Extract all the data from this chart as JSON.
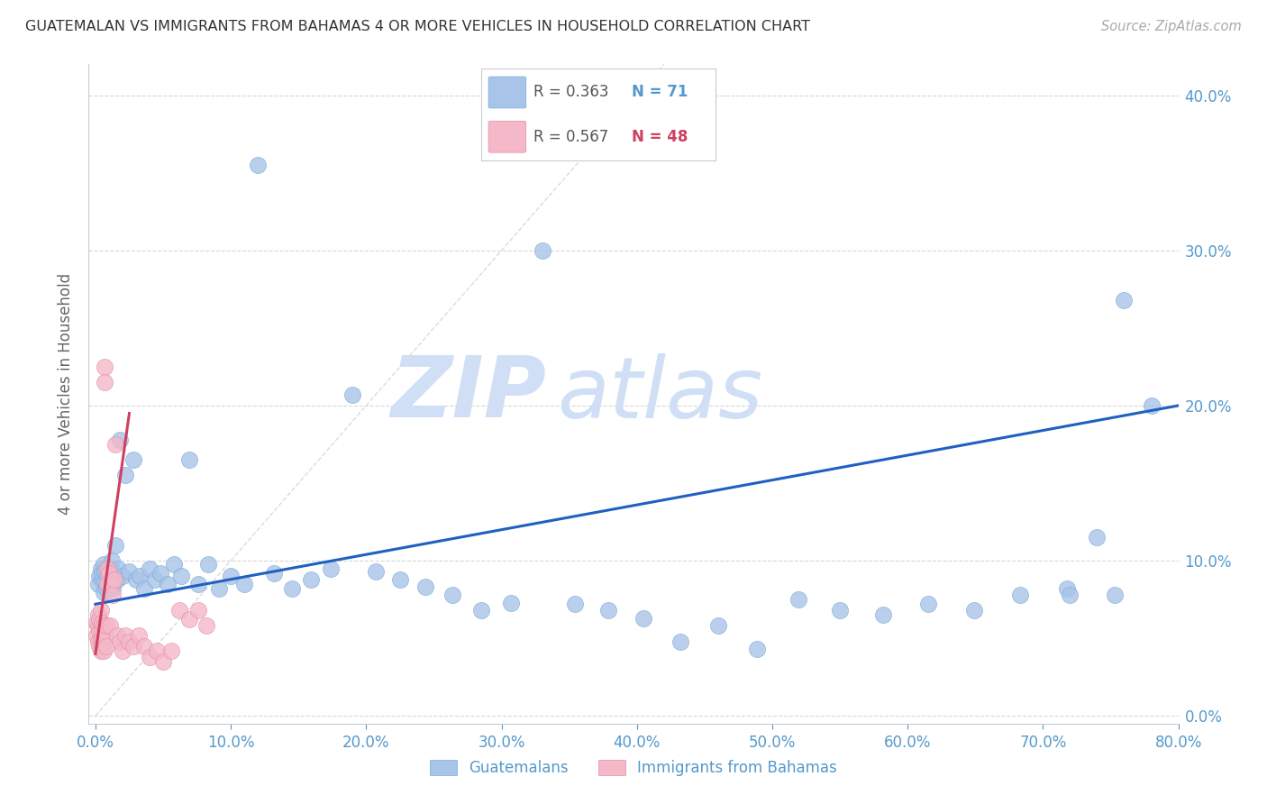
{
  "title": "GUATEMALAN VS IMMIGRANTS FROM BAHAMAS 4 OR MORE VEHICLES IN HOUSEHOLD CORRELATION CHART",
  "source": "Source: ZipAtlas.com",
  "ylabel": "4 or more Vehicles in Household",
  "x_label_blue": "Guatemalans",
  "x_label_pink": "Immigrants from Bahamas",
  "legend_blue_R": "0.363",
  "legend_blue_N": "71",
  "legend_pink_R": "0.567",
  "legend_pink_N": "48",
  "xlim": [
    0.0,
    0.8
  ],
  "ylim": [
    0.0,
    0.42
  ],
  "xticks": [
    0.0,
    0.1,
    0.2,
    0.3,
    0.4,
    0.5,
    0.6,
    0.7,
    0.8
  ],
  "yticks": [
    0.0,
    0.1,
    0.2,
    0.3,
    0.4
  ],
  "blue_color": "#a8c4e8",
  "blue_edge_color": "#7aaad8",
  "blue_line_color": "#2060c0",
  "pink_color": "#f5b8c8",
  "pink_edge_color": "#e090a8",
  "pink_line_color": "#d04060",
  "diag_line_color": "#d8d8d8",
  "grid_color": "#d8d8d8",
  "axis_tick_color": "#5599cc",
  "watermark_zip": "ZIP",
  "watermark_atlas": "atlas",
  "watermark_color": "#d0dff5",
  "blue_x": [
    0.002,
    0.003,
    0.004,
    0.005,
    0.005,
    0.006,
    0.006,
    0.007,
    0.007,
    0.008,
    0.009,
    0.01,
    0.01,
    0.011,
    0.012,
    0.013,
    0.014,
    0.015,
    0.016,
    0.017,
    0.018,
    0.02,
    0.022,
    0.025,
    0.028,
    0.03,
    0.033,
    0.036,
    0.04,
    0.044,
    0.048,
    0.053,
    0.058,
    0.063,
    0.069,
    0.076,
    0.083,
    0.091,
    0.1,
    0.11,
    0.12,
    0.132,
    0.145,
    0.159,
    0.174,
    0.19,
    0.207,
    0.225,
    0.244,
    0.264,
    0.285,
    0.307,
    0.33,
    0.354,
    0.379,
    0.405,
    0.432,
    0.46,
    0.489,
    0.519,
    0.55,
    0.582,
    0.615,
    0.649,
    0.683,
    0.718,
    0.753,
    0.78,
    0.76,
    0.74,
    0.72
  ],
  "blue_y": [
    0.085,
    0.09,
    0.095,
    0.088,
    0.092,
    0.08,
    0.098,
    0.087,
    0.093,
    0.082,
    0.09,
    0.085,
    0.095,
    0.088,
    0.1,
    0.082,
    0.092,
    0.11,
    0.088,
    0.095,
    0.178,
    0.09,
    0.155,
    0.093,
    0.165,
    0.088,
    0.09,
    0.082,
    0.095,
    0.088,
    0.092,
    0.085,
    0.098,
    0.09,
    0.165,
    0.085,
    0.098,
    0.082,
    0.09,
    0.085,
    0.355,
    0.092,
    0.082,
    0.088,
    0.095,
    0.207,
    0.093,
    0.088,
    0.083,
    0.078,
    0.068,
    0.073,
    0.3,
    0.072,
    0.068,
    0.063,
    0.048,
    0.058,
    0.043,
    0.075,
    0.068,
    0.065,
    0.072,
    0.068,
    0.078,
    0.082,
    0.078,
    0.2,
    0.268,
    0.115,
    0.078
  ],
  "pink_x": [
    0.001,
    0.001,
    0.002,
    0.002,
    0.002,
    0.003,
    0.003,
    0.003,
    0.004,
    0.004,
    0.004,
    0.004,
    0.005,
    0.005,
    0.005,
    0.005,
    0.006,
    0.006,
    0.006,
    0.007,
    0.007,
    0.007,
    0.008,
    0.008,
    0.009,
    0.009,
    0.01,
    0.011,
    0.012,
    0.013,
    0.014,
    0.015,
    0.016,
    0.018,
    0.02,
    0.022,
    0.025,
    0.028,
    0.032,
    0.036,
    0.04,
    0.045,
    0.05,
    0.056,
    0.062,
    0.069,
    0.076,
    0.082
  ],
  "pink_y": [
    0.06,
    0.052,
    0.065,
    0.048,
    0.058,
    0.055,
    0.062,
    0.045,
    0.058,
    0.05,
    0.042,
    0.068,
    0.052,
    0.06,
    0.045,
    0.055,
    0.048,
    0.058,
    0.042,
    0.225,
    0.215,
    0.052,
    0.058,
    0.045,
    0.095,
    0.085,
    0.092,
    0.058,
    0.085,
    0.078,
    0.088,
    0.175,
    0.052,
    0.048,
    0.042,
    0.052,
    0.048,
    0.045,
    0.052,
    0.045,
    0.038,
    0.042,
    0.035,
    0.042,
    0.068,
    0.062,
    0.068,
    0.058
  ],
  "blue_line_x0": 0.0,
  "blue_line_x1": 0.8,
  "blue_line_y0": 0.072,
  "blue_line_y1": 0.2,
  "pink_line_x0": 0.0,
  "pink_line_x1": 0.025,
  "pink_line_y0": 0.04,
  "pink_line_y1": 0.195
}
